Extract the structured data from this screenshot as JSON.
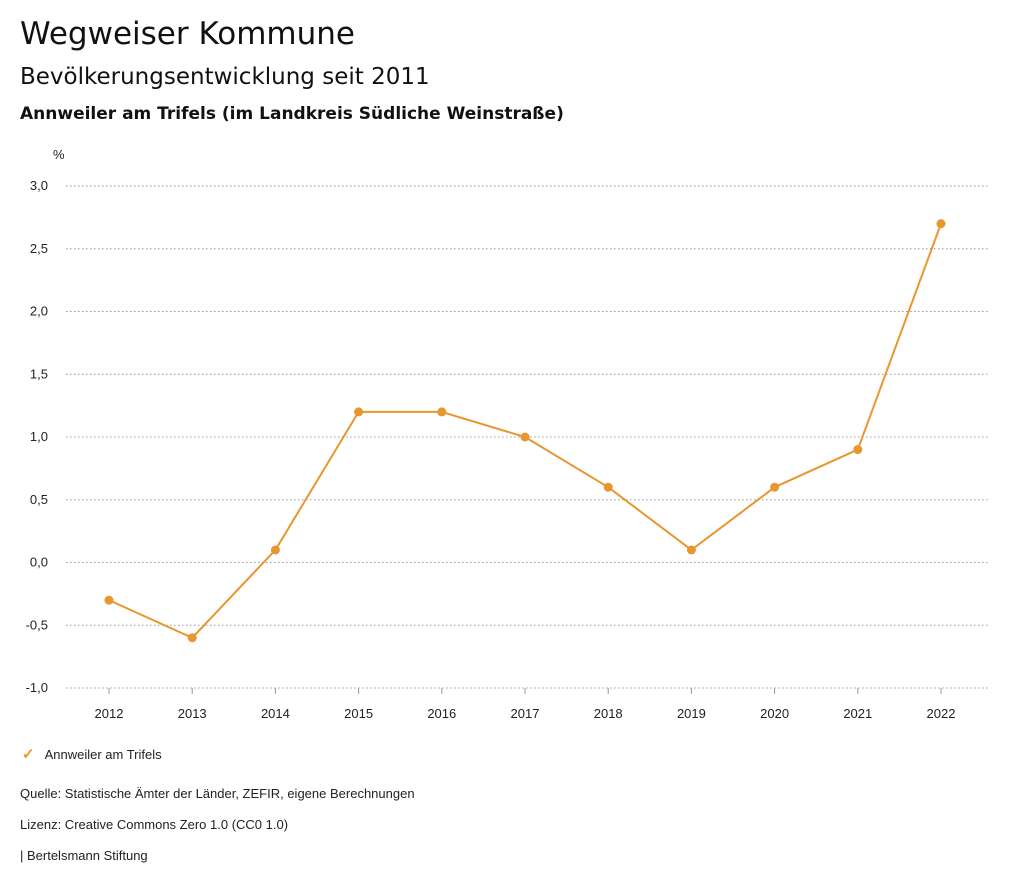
{
  "header": {
    "title": "Wegweiser Kommune",
    "subtitle": "Bevölkerungsentwicklung seit 2011",
    "region": "Annweiler am Trifels (im Landkreis Südliche Weinstraße)"
  },
  "chart_data": {
    "type": "line",
    "ylabel": "%",
    "ylim": [
      -1.0,
      3.0
    ],
    "yticks": [
      "-1,0",
      "-0,5",
      "0,0",
      "0,5",
      "1,0",
      "1,5",
      "2,0",
      "2,5",
      "3,0"
    ],
    "ytick_values": [
      -1.0,
      -0.5,
      0.0,
      0.5,
      1.0,
      1.5,
      2.0,
      2.5,
      3.0
    ],
    "categories": [
      "2012",
      "2013",
      "2014",
      "2015",
      "2016",
      "2017",
      "2018",
      "2019",
      "2020",
      "2021",
      "2022"
    ],
    "series": [
      {
        "name": "Annweiler am Trifels",
        "color": "#E8962E",
        "values": [
          -0.3,
          -0.6,
          0.1,
          1.2,
          1.2,
          1.0,
          0.6,
          0.1,
          0.6,
          0.9,
          2.7
        ]
      }
    ],
    "grid": "horizontal-dotted",
    "legend": "bottom-left"
  },
  "legend": {
    "label": "Annweiler am Trifels"
  },
  "footer": {
    "source": "Quelle: Statistische Ämter der Länder, ZEFIR, eigene Berechnungen",
    "license": "Lizenz: Creative Commons Zero 1.0 (CC0 1.0)",
    "publisher": "| Bertelsmann Stiftung"
  }
}
